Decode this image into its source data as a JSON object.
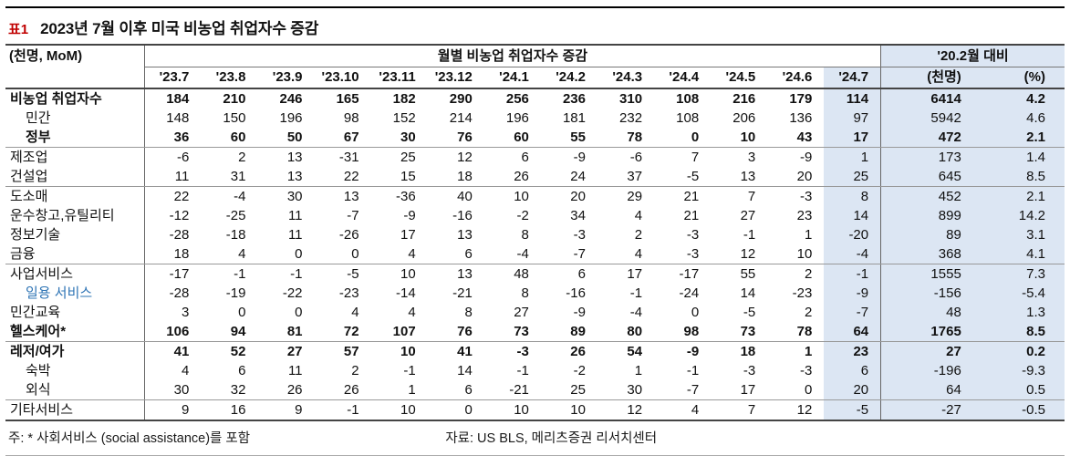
{
  "title": {
    "tag": "표1",
    "text": "2023년 7월 이후 미국 비농업 취업자수 증감"
  },
  "colors": {
    "highlight": "#dce6f3",
    "tag_red": "#c00000",
    "sub_label_blue": "#2e74b5"
  },
  "footer": {
    "note": "주: * 사회서비스 (social assistance)를 포함",
    "source": "자료: US BLS, 메리츠증권 리서치센터"
  },
  "chart_data": {
    "type": "table",
    "title": "2023년 7월 이후 미국 비농업 취업자수 증감",
    "unit_label": "(천명, MoM)",
    "column_groups": [
      {
        "label": "월별 비농업 취업자수 증감",
        "span": 13
      },
      {
        "label": "'20.2월 대비",
        "span": 2
      }
    ],
    "columns": [
      "'23.7",
      "'23.8",
      "'23.9",
      "'23.10",
      "'23.11",
      "'23.12",
      "'24.1",
      "'24.2",
      "'24.3",
      "'24.4",
      "'24.5",
      "'24.6",
      "'24.7",
      "(천명)",
      "(%)"
    ],
    "highlighted_columns": [
      "'24.7",
      "(천명)",
      "(%)"
    ],
    "rows": [
      {
        "label": "비농업 취업자수",
        "bold": true,
        "indent": 0,
        "blue": false,
        "separator_after": false,
        "values": [
          "184",
          "210",
          "246",
          "165",
          "182",
          "290",
          "256",
          "236",
          "310",
          "108",
          "216",
          "179",
          "114",
          "6414",
          "4.2"
        ]
      },
      {
        "label": "민간",
        "bold": false,
        "indent": 1,
        "blue": false,
        "separator_after": false,
        "values": [
          "148",
          "150",
          "196",
          "98",
          "152",
          "214",
          "196",
          "181",
          "232",
          "108",
          "206",
          "136",
          "97",
          "5942",
          "4.6"
        ]
      },
      {
        "label": "정부",
        "bold": true,
        "indent": 1,
        "blue": false,
        "separator_after": true,
        "values": [
          "36",
          "60",
          "50",
          "67",
          "30",
          "76",
          "60",
          "55",
          "78",
          "0",
          "10",
          "43",
          "17",
          "472",
          "2.1"
        ]
      },
      {
        "label": "제조업",
        "bold": false,
        "indent": 0,
        "blue": false,
        "separator_after": false,
        "values": [
          "-6",
          "2",
          "13",
          "-31",
          "25",
          "12",
          "6",
          "-9",
          "-6",
          "7",
          "3",
          "-9",
          "1",
          "173",
          "1.4"
        ]
      },
      {
        "label": "건설업",
        "bold": false,
        "indent": 0,
        "blue": false,
        "separator_after": true,
        "values": [
          "11",
          "31",
          "13",
          "22",
          "15",
          "18",
          "26",
          "24",
          "37",
          "-5",
          "13",
          "20",
          "25",
          "645",
          "8.5"
        ]
      },
      {
        "label": "도소매",
        "bold": false,
        "indent": 0,
        "blue": false,
        "separator_after": false,
        "values": [
          "22",
          "-4",
          "30",
          "13",
          "-36",
          "40",
          "10",
          "20",
          "29",
          "21",
          "7",
          "-3",
          "8",
          "452",
          "2.1"
        ]
      },
      {
        "label": "운수창고,유틸리티",
        "bold": false,
        "indent": 0,
        "blue": false,
        "separator_after": false,
        "values": [
          "-12",
          "-25",
          "11",
          "-7",
          "-9",
          "-16",
          "-2",
          "34",
          "4",
          "21",
          "27",
          "23",
          "14",
          "899",
          "14.2"
        ]
      },
      {
        "label": "정보기술",
        "bold": false,
        "indent": 0,
        "blue": false,
        "separator_after": false,
        "values": [
          "-28",
          "-18",
          "11",
          "-26",
          "17",
          "13",
          "8",
          "-3",
          "2",
          "-3",
          "-1",
          "1",
          "-20",
          "89",
          "3.1"
        ]
      },
      {
        "label": "금융",
        "bold": false,
        "indent": 0,
        "blue": false,
        "separator_after": true,
        "values": [
          "18",
          "4",
          "0",
          "0",
          "4",
          "6",
          "-4",
          "-7",
          "4",
          "-3",
          "12",
          "10",
          "-4",
          "368",
          "4.1"
        ]
      },
      {
        "label": "사업서비스",
        "bold": false,
        "indent": 0,
        "blue": false,
        "separator_after": false,
        "values": [
          "-17",
          "-1",
          "-1",
          "-5",
          "10",
          "13",
          "48",
          "6",
          "17",
          "-17",
          "55",
          "2",
          "-1",
          "1555",
          "7.3"
        ]
      },
      {
        "label": "일용 서비스",
        "bold": false,
        "indent": 1,
        "blue": true,
        "separator_after": false,
        "values": [
          "-28",
          "-19",
          "-22",
          "-23",
          "-14",
          "-21",
          "8",
          "-16",
          "-1",
          "-24",
          "14",
          "-23",
          "-9",
          "-156",
          "-5.4"
        ]
      },
      {
        "label": "민간교육",
        "bold": false,
        "indent": 0,
        "blue": false,
        "separator_after": false,
        "values": [
          "3",
          "0",
          "0",
          "4",
          "4",
          "8",
          "27",
          "-9",
          "-4",
          "0",
          "-5",
          "2",
          "-7",
          "48",
          "1.3"
        ]
      },
      {
        "label": "헬스케어*",
        "bold": true,
        "indent": 0,
        "blue": false,
        "separator_after": true,
        "values": [
          "106",
          "94",
          "81",
          "72",
          "107",
          "76",
          "73",
          "89",
          "80",
          "98",
          "73",
          "78",
          "64",
          "1765",
          "8.5"
        ]
      },
      {
        "label": "레저/여가",
        "bold": true,
        "indent": 0,
        "blue": false,
        "separator_after": false,
        "values": [
          "41",
          "52",
          "27",
          "57",
          "10",
          "41",
          "-3",
          "26",
          "54",
          "-9",
          "18",
          "1",
          "23",
          "27",
          "0.2"
        ]
      },
      {
        "label": "숙박",
        "bold": false,
        "indent": 1,
        "blue": false,
        "separator_after": false,
        "values": [
          "4",
          "6",
          "11",
          "2",
          "-1",
          "14",
          "-1",
          "-2",
          "1",
          "-1",
          "-3",
          "-3",
          "6",
          "-196",
          "-9.3"
        ]
      },
      {
        "label": "외식",
        "bold": false,
        "indent": 1,
        "blue": false,
        "separator_after": true,
        "values": [
          "30",
          "32",
          "26",
          "26",
          "1",
          "6",
          "-21",
          "25",
          "30",
          "-7",
          "17",
          "0",
          "20",
          "64",
          "0.5"
        ]
      },
      {
        "label": "기타서비스",
        "bold": false,
        "indent": 0,
        "blue": false,
        "separator_after": false,
        "values": [
          "9",
          "16",
          "9",
          "-1",
          "10",
          "0",
          "10",
          "10",
          "12",
          "4",
          "7",
          "12",
          "-5",
          "-27",
          "-0.5"
        ]
      }
    ]
  }
}
